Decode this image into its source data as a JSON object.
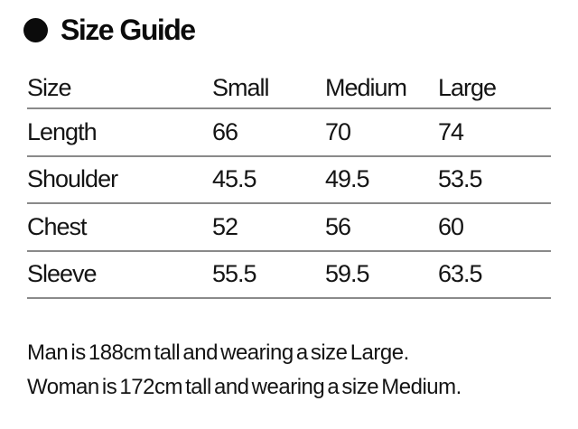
{
  "header": {
    "title": "Size Guide",
    "bullet_icon": "filled-circle"
  },
  "size_table": {
    "columns": [
      "Size",
      "Small",
      "Medium",
      "Large"
    ],
    "rows": [
      {
        "label": "Length",
        "values": [
          "66",
          "70",
          "74"
        ]
      },
      {
        "label": "Shoulder",
        "values": [
          "45.5",
          "49.5",
          "53.5"
        ]
      },
      {
        "label": "Chest",
        "values": [
          "52",
          "56",
          "60"
        ]
      },
      {
        "label": "Sleeve",
        "values": [
          "55.5",
          "59.5",
          "63.5"
        ]
      }
    ]
  },
  "notes": [
    "Man is 188cm tall and wearing a size Large.",
    "Woman is 172cm tall and wearing a size Medium."
  ],
  "colors": {
    "text": "#141414",
    "rule": "#8a8a8a",
    "bullet": "#0b0b0b",
    "background": "#ffffff"
  }
}
